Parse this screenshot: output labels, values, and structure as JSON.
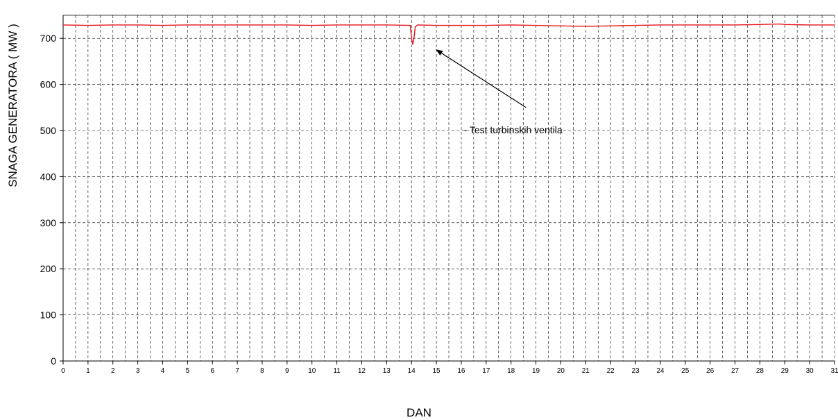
{
  "chart_data": {
    "type": "line",
    "xlabel": "DAN",
    "ylabel": "SNAGA GENERATORA  ( MW )",
    "xlim": [
      0,
      31
    ],
    "ylim": [
      0,
      750
    ],
    "x_ticks": [
      0,
      1,
      2,
      3,
      4,
      5,
      6,
      7,
      8,
      9,
      10,
      11,
      12,
      13,
      14,
      15,
      16,
      17,
      18,
      19,
      20,
      21,
      22,
      23,
      24,
      25,
      26,
      27,
      28,
      29,
      30,
      31
    ],
    "y_ticks": [
      0,
      100,
      200,
      300,
      400,
      500,
      600,
      700
    ],
    "grid": true,
    "series": [
      {
        "color": "#e8141c",
        "x": [
          0,
          1,
          2,
          3,
          4,
          5,
          6,
          7,
          8,
          9,
          10,
          11,
          12,
          13,
          13.95,
          14.0,
          14.05,
          14.1,
          14.15,
          14.25,
          15,
          16,
          17,
          18,
          19,
          20,
          21,
          22,
          23,
          24,
          25,
          26,
          27,
          28,
          28.8,
          29,
          30,
          31
        ],
        "y": [
          729,
          728,
          729,
          729,
          728,
          729,
          729,
          729,
          729,
          729,
          728,
          729,
          729,
          729,
          728,
          700,
          687,
          700,
          725,
          729,
          728,
          728,
          728,
          729,
          728,
          727,
          726,
          727,
          728,
          729,
          729,
          729,
          729,
          730,
          731,
          730,
          729,
          729
        ]
      }
    ],
    "annotations": [
      {
        "text": "- Test turbinskih ventila",
        "x": 16.1,
        "y": 500,
        "arrow_from": [
          18.6,
          550
        ],
        "arrow_to": [
          15.0,
          675
        ]
      }
    ]
  }
}
